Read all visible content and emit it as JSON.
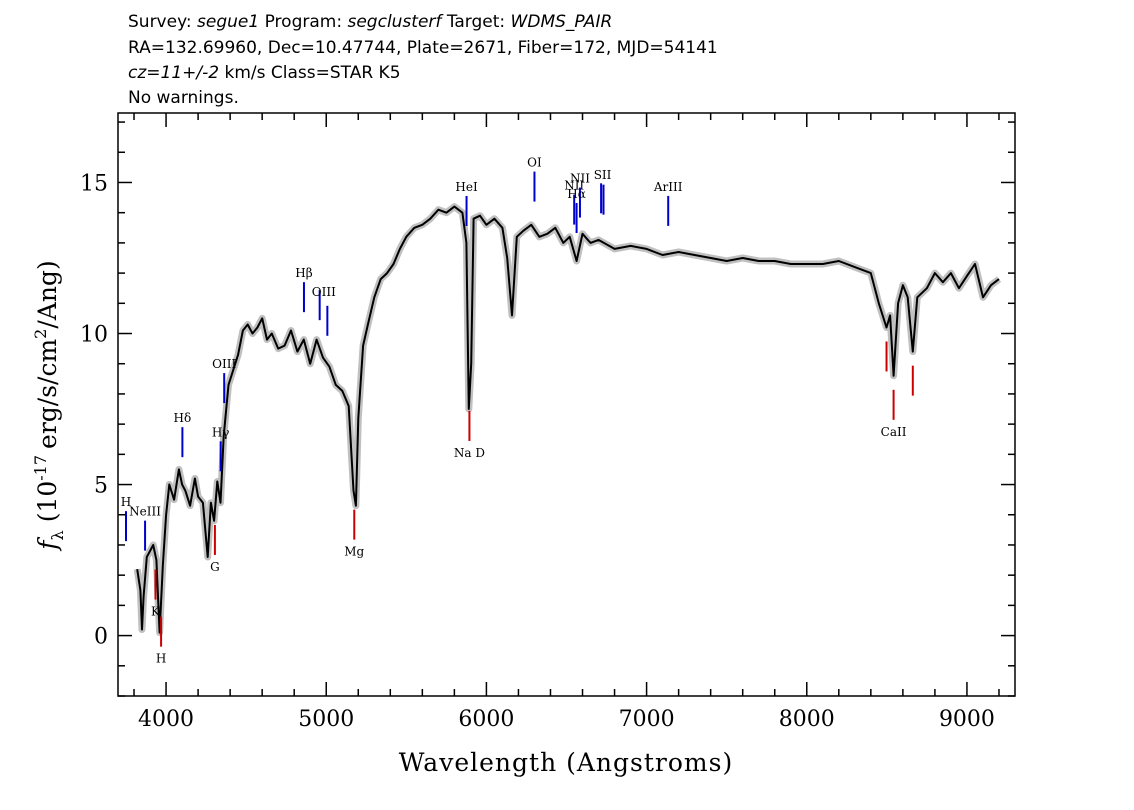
{
  "header": {
    "line1": {
      "survey_label": "Survey:",
      "survey": "segue1",
      "program_label": "Program:",
      "program": "segclusterf",
      "target_label": "Target:",
      "target": "WDMS_PAIR"
    },
    "line2": "RA=132.69960, Dec=10.47744, Plate=2671, Fiber=172, MJD=54141",
    "line3": {
      "cz": "cz=11+/-2",
      "rest": "km/s Class=STAR K5"
    },
    "line4": "No warnings."
  },
  "chart_data": {
    "type": "line",
    "xlabel": "Wavelength (Angstroms)",
    "ylabel": {
      "symbol": "f",
      "subscript": "λ",
      "open": "(10",
      "exponent": "-17",
      "unit": "erg/s/cm",
      "unit_exp": "2",
      "close": "/Ang)"
    },
    "xlim": [
      3700,
      9300
    ],
    "ylim": [
      -2,
      17.3
    ],
    "xticks": [
      4000,
      5000,
      6000,
      7000,
      8000,
      9000
    ],
    "xtick_labels": [
      "4000",
      "5000",
      "6000",
      "7000",
      "8000",
      "9000"
    ],
    "yticks": [
      0,
      5,
      10,
      15
    ],
    "ytick_labels": [
      "0",
      "5",
      "10",
      "15"
    ],
    "x_minor_step": 200,
    "y_minor_step": 1,
    "colors": {
      "spectrum": "#000000",
      "error_band": "#c0c0c0",
      "emission": "#0000cc",
      "absorption": "#cc0000"
    },
    "series": [
      {
        "wavelength": [
          3820,
          3840,
          3850,
          3860,
          3880,
          3900,
          3920,
          3940,
          3960,
          3980,
          4000,
          4020,
          4050,
          4080,
          4100,
          4120,
          4150,
          4180,
          4200,
          4230,
          4260,
          4280,
          4300,
          4320,
          4340,
          4360,
          4390,
          4420,
          4450,
          4480,
          4510,
          4540,
          4570,
          4600,
          4630,
          4660,
          4700,
          4740,
          4780,
          4820,
          4860,
          4900,
          4940,
          4980,
          5020,
          5060,
          5100,
          5140,
          5170,
          5185,
          5200,
          5230,
          5260,
          5300,
          5340,
          5380,
          5420,
          5460,
          5500,
          5550,
          5600,
          5650,
          5700,
          5750,
          5800,
          5850,
          5875,
          5890,
          5905,
          5920,
          5960,
          6000,
          6050,
          6100,
          6130,
          6160,
          6190,
          6230,
          6280,
          6330,
          6380,
          6430,
          6480,
          6520,
          6563,
          6600,
          6650,
          6700,
          6800,
          6900,
          7000,
          7100,
          7200,
          7300,
          7400,
          7500,
          7600,
          7700,
          7800,
          7900,
          8000,
          8100,
          8200,
          8300,
          8400,
          8450,
          8498,
          8520,
          8542,
          8570,
          8600,
          8630,
          8662,
          8690,
          8750,
          8800,
          8850,
          8900,
          8950,
          9000,
          9050,
          9100,
          9150,
          9200
        ],
        "flux": [
          2.2,
          1.5,
          0.2,
          1.3,
          2.6,
          2.8,
          3.0,
          2.5,
          0.1,
          2.3,
          4.0,
          5.0,
          4.5,
          5.5,
          5.0,
          4.8,
          4.3,
          5.2,
          4.6,
          4.4,
          2.6,
          4.4,
          3.8,
          5.1,
          4.4,
          6.6,
          8.3,
          8.8,
          9.3,
          10.1,
          10.3,
          10.0,
          10.2,
          10.5,
          9.8,
          10.0,
          9.5,
          9.6,
          10.1,
          9.4,
          9.8,
          9.0,
          9.8,
          9.2,
          8.9,
          8.3,
          8.1,
          7.6,
          4.8,
          4.3,
          7.2,
          9.6,
          10.3,
          11.2,
          11.8,
          12.0,
          12.3,
          12.8,
          13.2,
          13.5,
          13.6,
          13.8,
          14.1,
          14.0,
          14.2,
          14.0,
          13.0,
          7.5,
          9.0,
          13.8,
          13.9,
          13.6,
          13.8,
          13.5,
          12.5,
          10.6,
          13.2,
          13.4,
          13.6,
          13.2,
          13.3,
          13.5,
          13.0,
          13.2,
          12.4,
          13.3,
          13.0,
          13.1,
          12.8,
          12.9,
          12.8,
          12.6,
          12.7,
          12.6,
          12.5,
          12.4,
          12.5,
          12.4,
          12.4,
          12.3,
          12.3,
          12.3,
          12.4,
          12.2,
          12.0,
          11.0,
          10.2,
          10.6,
          8.6,
          11.0,
          11.6,
          11.2,
          9.4,
          11.2,
          11.5,
          12.0,
          11.7,
          12.0,
          11.5,
          11.9,
          12.3,
          11.2,
          11.6,
          11.8
        ]
      }
    ],
    "emission_lines": [
      {
        "label": "H",
        "wavelength": 3750
      },
      {
        "label": "NeIII",
        "wavelength": 3869
      },
      {
        "label": "Hδ",
        "wavelength": 4102
      },
      {
        "label": "Hγ",
        "wavelength": 4341
      },
      {
        "label": "OIII",
        "wavelength": 4363
      },
      {
        "label": "Hβ",
        "wavelength": 4861
      },
      {
        "label": "OIII",
        "wavelength": 4959
      },
      {
        "label": "OIII_2",
        "wavelength": 5007
      },
      {
        "label": "HeI",
        "wavelength": 5876
      },
      {
        "label": "OI",
        "wavelength": 6300
      },
      {
        "label": "NII",
        "wavelength": 6548
      },
      {
        "label": "Hα",
        "wavelength": 6563
      },
      {
        "label": "NII_2",
        "wavelength": 6584
      },
      {
        "label": "SII",
        "wavelength": 6716
      },
      {
        "label": "SII_2",
        "wavelength": 6731
      },
      {
        "label": "ArIII",
        "wavelength": 7135
      }
    ],
    "emission_labels": [
      {
        "text": "H",
        "wavelength": 3750
      },
      {
        "text": "NeIII",
        "wavelength": 3869
      },
      {
        "text": "Hδ",
        "wavelength": 4102
      },
      {
        "text": "Hγ",
        "wavelength": 4341
      },
      {
        "text": "OIII",
        "wavelength": 4363
      },
      {
        "text": "Hβ",
        "wavelength": 4861
      },
      {
        "text": "OIII",
        "wavelength": 4985
      },
      {
        "text": "HeI",
        "wavelength": 5876
      },
      {
        "text": "OI",
        "wavelength": 6300
      },
      {
        "text": "NII",
        "wavelength": 6548
      },
      {
        "text": "Hα",
        "wavelength": 6563
      },
      {
        "text": "NII",
        "wavelength": 6584
      },
      {
        "text": "SII",
        "wavelength": 6725
      },
      {
        "text": "ArIII",
        "wavelength": 7135
      }
    ],
    "absorption_lines": [
      {
        "label": "K",
        "wavelength": 3934
      },
      {
        "label": "H",
        "wavelength": 3969
      },
      {
        "label": "G",
        "wavelength": 4305
      },
      {
        "label": "Mg",
        "wavelength": 5175
      },
      {
        "label": "Na D",
        "wavelength": 5894
      },
      {
        "label": "CaII",
        "wavelength": 8498
      },
      {
        "label": "CaII",
        "wavelength": 8542
      },
      {
        "label": "CaII",
        "wavelength": 8662
      }
    ],
    "absorption_labels": [
      {
        "text": "K",
        "wavelength": 3934
      },
      {
        "text": "H",
        "wavelength": 3969
      },
      {
        "text": "G",
        "wavelength": 4305
      },
      {
        "text": "Mg",
        "wavelength": 5175
      },
      {
        "text": "Na D",
        "wavelength": 5894
      },
      {
        "text": "CaII",
        "wavelength": 8542
      }
    ]
  }
}
